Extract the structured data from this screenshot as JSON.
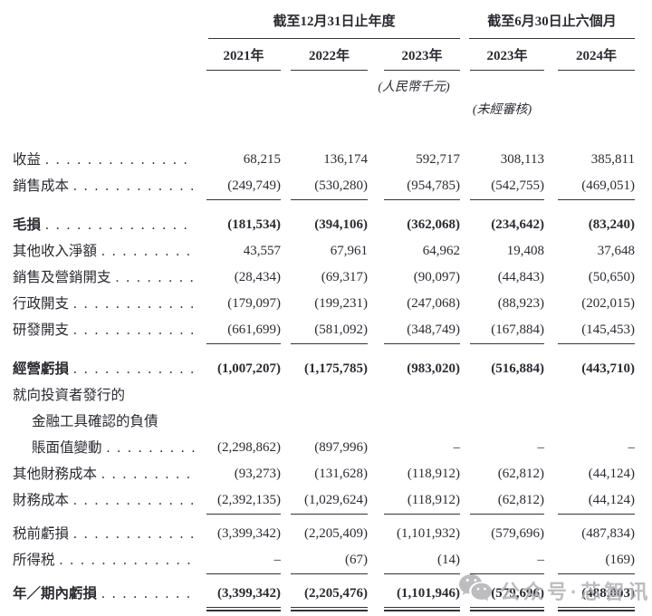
{
  "table": {
    "col_groups": [
      {
        "title": "截至12月31日止年度",
        "years": [
          "2021年",
          "2022年",
          "2023年"
        ]
      },
      {
        "title": "截至6月30日止六個月",
        "years": [
          "2023年",
          "2024年"
        ]
      }
    ],
    "unit_note": "(人民幣千元)",
    "audit_note": "(未經審核)",
    "rows": [
      {
        "label": "收益",
        "dots": true,
        "indent": 0,
        "bold": false,
        "gap": null,
        "underline": "none",
        "values": [
          "68,215",
          "136,174",
          "592,717",
          "308,113",
          "385,811"
        ]
      },
      {
        "label": "銷售成本",
        "dots": true,
        "indent": 0,
        "bold": false,
        "gap": null,
        "underline": "single",
        "values": [
          "(249,749)",
          "(530,280)",
          "(954,785)",
          "(542,755)",
          "(469,051)"
        ]
      },
      {
        "label": "毛損",
        "dots": true,
        "indent": 0,
        "bold": true,
        "gap": "lg",
        "underline": "none",
        "values": [
          "(181,534)",
          "(394,106)",
          "(362,068)",
          "(234,642)",
          "(83,240)"
        ]
      },
      {
        "label": "其他收入淨額",
        "dots": true,
        "indent": 0,
        "bold": false,
        "gap": null,
        "underline": "none",
        "values": [
          "43,557",
          "67,961",
          "64,962",
          "19,408",
          "37,648"
        ]
      },
      {
        "label": "銷售及營銷開支",
        "dots": true,
        "indent": 0,
        "bold": false,
        "gap": null,
        "underline": "none",
        "values": [
          "(28,434)",
          "(69,317)",
          "(90,097)",
          "(44,843)",
          "(50,650)"
        ]
      },
      {
        "label": "行政開支",
        "dots": true,
        "indent": 0,
        "bold": false,
        "gap": null,
        "underline": "none",
        "values": [
          "(179,097)",
          "(199,231)",
          "(247,068)",
          "(88,923)",
          "(202,015)"
        ]
      },
      {
        "label": "研發開支",
        "dots": true,
        "indent": 0,
        "bold": false,
        "gap": null,
        "underline": "single",
        "values": [
          "(661,699)",
          "(581,092)",
          "(348,749)",
          "(167,884)",
          "(145,453)"
        ]
      },
      {
        "label": "經營虧損",
        "dots": true,
        "indent": 0,
        "bold": true,
        "gap": "lg",
        "underline": "none",
        "values": [
          "(1,007,207)",
          "(1,175,785)",
          "(983,020)",
          "(516,884)",
          "(443,710)"
        ]
      },
      {
        "label": "就向投資者發行的",
        "dots": false,
        "indent": 0,
        "bold": false,
        "gap": null,
        "underline": "none",
        "values": [
          "",
          "",
          "",
          "",
          ""
        ]
      },
      {
        "label": "金融工具確認的負債",
        "dots": false,
        "indent": 1,
        "bold": false,
        "gap": null,
        "underline": "none",
        "values": [
          "",
          "",
          "",
          "",
          ""
        ]
      },
      {
        "label": "賬面值變動",
        "dots": true,
        "indent": 1,
        "bold": false,
        "gap": null,
        "underline": "none",
        "values": [
          "(2,298,862)",
          "(897,996)",
          "–",
          "–",
          "–"
        ]
      },
      {
        "label": "其他財務成本",
        "dots": true,
        "indent": 0,
        "bold": false,
        "gap": null,
        "underline": "none",
        "values": [
          "(93,273)",
          "(131,628)",
          "(118,912)",
          "(62,812)",
          "(44,124)"
        ]
      },
      {
        "label": "財務成本",
        "dots": true,
        "indent": 0,
        "bold": false,
        "gap": null,
        "underline": "single",
        "values": [
          "(2,392,135)",
          "(1,029,624)",
          "(118,912)",
          "(62,812)",
          "(44,124)"
        ]
      },
      {
        "label": "税前虧損",
        "dots": true,
        "indent": 0,
        "bold": false,
        "gap": "sm",
        "underline": "none",
        "values": [
          "(3,399,342)",
          "(2,205,409)",
          "(1,101,932)",
          "(579,696)",
          "(487,834)"
        ]
      },
      {
        "label": "所得税",
        "dots": true,
        "indent": 0,
        "bold": false,
        "gap": null,
        "underline": "single",
        "values": [
          "–",
          "(67)",
          "(14)",
          "–",
          "(169)"
        ]
      },
      {
        "label": "年／期內虧損",
        "dots": true,
        "indent": 0,
        "bold": true,
        "gap": "sm",
        "underline": "double",
        "values": [
          "(3,399,342)",
          "(2,205,476)",
          "(1,101,946)",
          "(579,696)",
          "(488,003)"
        ]
      }
    ]
  },
  "watermark": {
    "icon": "wechat-icon",
    "text": "公众号·芯智讯",
    "color": "#b2b2b6"
  },
  "colors": {
    "text": "#2b2b31",
    "rule": "#33333a",
    "background": "#ffffff"
  }
}
